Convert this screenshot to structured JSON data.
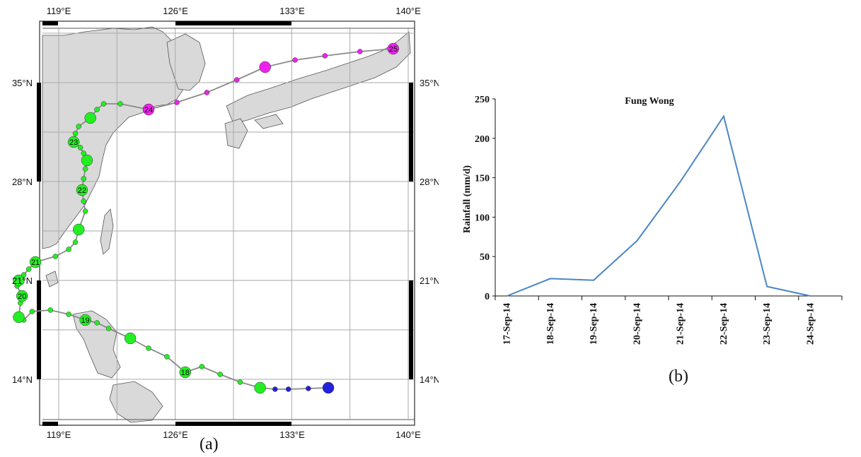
{
  "captions": {
    "a": "(a)",
    "b": "(b)"
  },
  "colors": {
    "green": "#22ee22",
    "magenta": "#ee22ee",
    "blue": "#2222dd",
    "land": "#d9d9d9",
    "grid": "#aaaaaa",
    "line": "#4a86c5"
  },
  "map": {
    "lon_labels": [
      "119°E",
      "126°E",
      "133°E",
      "140°E"
    ],
    "lat_labels": [
      "35°N",
      "28°N",
      "21°N",
      "14°N"
    ],
    "track_points": [
      {
        "lon": 135.2,
        "lat": 13.4,
        "big": true,
        "color": "blue",
        "label": ""
      },
      {
        "lon": 134.0,
        "lat": 13.35,
        "big": false,
        "color": "blue",
        "label": ""
      },
      {
        "lon": 132.8,
        "lat": 13.3,
        "big": false,
        "color": "blue",
        "label": ""
      },
      {
        "lon": 132.0,
        "lat": 13.3,
        "big": false,
        "color": "blue",
        "label": ""
      },
      {
        "lon": 131.1,
        "lat": 13.4,
        "big": true,
        "color": "green",
        "label": ""
      },
      {
        "lon": 129.9,
        "lat": 13.8,
        "big": false,
        "color": "green",
        "label": ""
      },
      {
        "lon": 128.7,
        "lat": 14.35,
        "big": false,
        "color": "green",
        "label": ""
      },
      {
        "lon": 127.6,
        "lat": 14.9,
        "big": false,
        "color": "green",
        "label": ""
      },
      {
        "lon": 126.6,
        "lat": 14.5,
        "big": true,
        "color": "green",
        "label": "18"
      },
      {
        "lon": 125.5,
        "lat": 15.6,
        "big": false,
        "color": "green",
        "label": ""
      },
      {
        "lon": 124.4,
        "lat": 16.2,
        "big": false,
        "color": "green",
        "label": ""
      },
      {
        "lon": 123.3,
        "lat": 16.9,
        "big": true,
        "color": "green",
        "label": ""
      },
      {
        "lon": 122.0,
        "lat": 17.6,
        "big": false,
        "color": "green",
        "label": ""
      },
      {
        "lon": 121.3,
        "lat": 18.0,
        "big": false,
        "color": "green",
        "label": ""
      },
      {
        "lon": 120.6,
        "lat": 18.2,
        "big": true,
        "color": "green",
        "label": "19"
      },
      {
        "lon": 119.6,
        "lat": 18.6,
        "big": false,
        "color": "green",
        "label": ""
      },
      {
        "lon": 118.5,
        "lat": 18.9,
        "big": false,
        "color": "green",
        "label": ""
      },
      {
        "lon": 117.4,
        "lat": 18.8,
        "big": false,
        "color": "green",
        "label": ""
      },
      {
        "lon": 116.9,
        "lat": 18.2,
        "big": false,
        "color": "green",
        "label": ""
      },
      {
        "lon": 116.6,
        "lat": 18.4,
        "big": true,
        "color": "green",
        "label": ""
      },
      {
        "lon": 116.7,
        "lat": 19.4,
        "big": false,
        "color": "green",
        "label": ""
      },
      {
        "lon": 116.8,
        "lat": 19.9,
        "big": true,
        "color": "green",
        "label": "20"
      },
      {
        "lon": 116.5,
        "lat": 20.6,
        "big": false,
        "color": "green",
        "label": ""
      },
      {
        "lon": 116.6,
        "lat": 21.0,
        "big": true,
        "color": "green",
        "label": ""
      },
      {
        "lon": 116.9,
        "lat": 21.4,
        "big": false,
        "color": "green",
        "label": ""
      },
      {
        "lon": 117.2,
        "lat": 21.8,
        "big": false,
        "color": "green",
        "label": ""
      },
      {
        "lon": 117.6,
        "lat": 22.3,
        "big": true,
        "color": "green",
        "label": "21"
      },
      {
        "lon": 118.8,
        "lat": 22.7,
        "big": false,
        "color": "green",
        "label": ""
      },
      {
        "lon": 119.6,
        "lat": 23.2,
        "big": false,
        "color": "green",
        "label": ""
      },
      {
        "lon": 120.0,
        "lat": 23.7,
        "big": false,
        "color": "green",
        "label": ""
      },
      {
        "lon": 120.2,
        "lat": 24.6,
        "big": true,
        "color": "green",
        "label": ""
      },
      {
        "lon": 120.6,
        "lat": 25.9,
        "big": false,
        "color": "green",
        "label": ""
      },
      {
        "lon": 120.5,
        "lat": 26.6,
        "big": false,
        "color": "green",
        "label": ""
      },
      {
        "lon": 120.4,
        "lat": 27.4,
        "big": true,
        "color": "green",
        "label": "22"
      },
      {
        "lon": 120.5,
        "lat": 28.2,
        "big": false,
        "color": "green",
        "label": ""
      },
      {
        "lon": 120.6,
        "lat": 28.9,
        "big": false,
        "color": "green",
        "label": ""
      },
      {
        "lon": 120.7,
        "lat": 29.5,
        "big": true,
        "color": "green",
        "label": ""
      },
      {
        "lon": 120.5,
        "lat": 30.0,
        "big": false,
        "color": "green",
        "label": ""
      },
      {
        "lon": 120.3,
        "lat": 30.4,
        "big": false,
        "color": "green",
        "label": ""
      },
      {
        "lon": 119.9,
        "lat": 30.8,
        "big": true,
        "color": "green",
        "label": "23"
      },
      {
        "lon": 120.0,
        "lat": 31.4,
        "big": false,
        "color": "green",
        "label": ""
      },
      {
        "lon": 120.2,
        "lat": 31.9,
        "big": false,
        "color": "green",
        "label": ""
      },
      {
        "lon": 120.9,
        "lat": 32.5,
        "big": true,
        "color": "green",
        "label": ""
      },
      {
        "lon": 121.3,
        "lat": 33.1,
        "big": false,
        "color": "green",
        "label": ""
      },
      {
        "lon": 121.7,
        "lat": 33.5,
        "big": false,
        "color": "green",
        "label": ""
      },
      {
        "lon": 122.7,
        "lat": 33.5,
        "big": false,
        "color": "green",
        "label": ""
      },
      {
        "lon": 124.4,
        "lat": 33.1,
        "big": true,
        "color": "magenta",
        "label": "24"
      },
      {
        "lon": 126.1,
        "lat": 33.6,
        "big": false,
        "color": "magenta",
        "label": ""
      },
      {
        "lon": 127.9,
        "lat": 34.3,
        "big": false,
        "color": "magenta",
        "label": ""
      },
      {
        "lon": 129.7,
        "lat": 35.2,
        "big": false,
        "color": "magenta",
        "label": ""
      },
      {
        "lon": 131.4,
        "lat": 36.1,
        "big": true,
        "color": "magenta",
        "label": ""
      },
      {
        "lon": 133.2,
        "lat": 36.6,
        "big": false,
        "color": "magenta",
        "label": ""
      },
      {
        "lon": 135.0,
        "lat": 36.9,
        "big": false,
        "color": "magenta",
        "label": ""
      },
      {
        "lon": 137.1,
        "lat": 37.2,
        "big": false,
        "color": "magenta",
        "label": ""
      },
      {
        "lon": 139.1,
        "lat": 37.4,
        "big": true,
        "color": "magenta",
        "label": "25"
      }
    ]
  },
  "chart_data": {
    "type": "line",
    "title": "Fung Wong",
    "ylabel": "Rainfall (mm/d)",
    "xlabel": "",
    "categories": [
      "17-Sep-14",
      "18-Sep-14",
      "19-Sep-14",
      "20-Sep-14",
      "21-Sep-14",
      "22-Sep-14",
      "23-Sep-14",
      "24-Sep-14"
    ],
    "values": [
      0,
      22,
      20,
      70,
      145,
      228,
      12,
      0
    ],
    "ylim": [
      0,
      250
    ],
    "yticks": [
      "0",
      "50",
      "100",
      "150",
      "200",
      "250"
    ],
    "grid": false,
    "legend": "none"
  }
}
